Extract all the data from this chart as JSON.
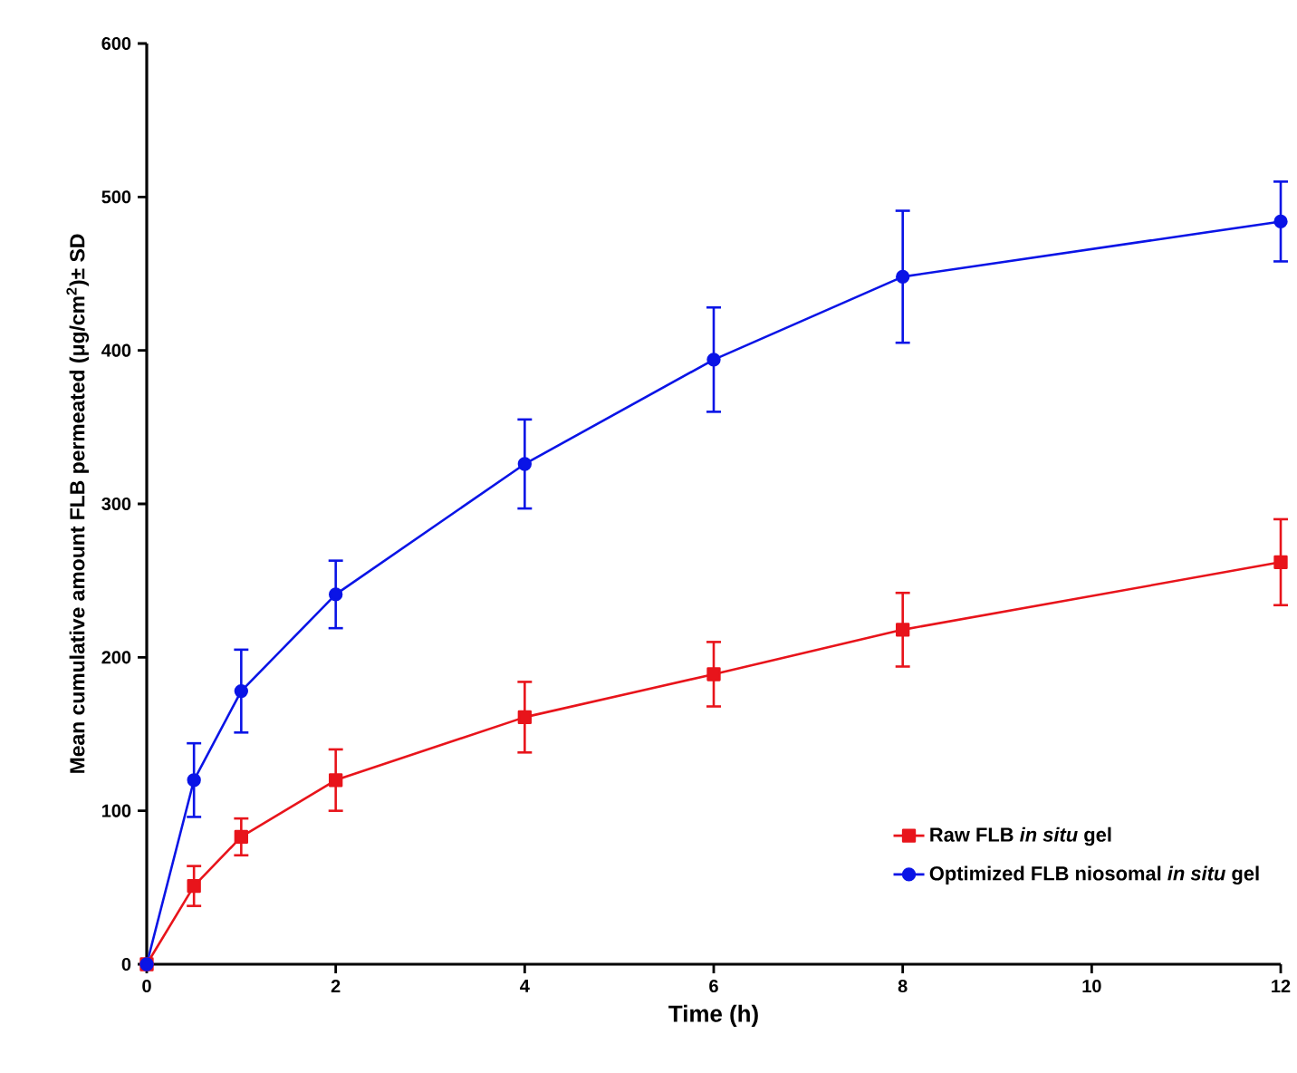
{
  "chart_data": {
    "type": "line",
    "xlabel": "Time (h)",
    "ylabel": "Mean cumulative amount FLB permeated (μg/cm$^{2}$)± SD",
    "x": [
      0,
      0.5,
      1,
      2,
      4,
      6,
      8,
      12
    ],
    "series": [
      {
        "name": "Raw FLB *in situ* gel",
        "color": "#e8141b",
        "marker": "square",
        "values": [
          0,
          51,
          83,
          120,
          161,
          189,
          218,
          262
        ],
        "errors": [
          0,
          13,
          12,
          20,
          23,
          21,
          24,
          28
        ]
      },
      {
        "name": "Optimized FLB niosomal *in situ* gel",
        "color": "#0a14e6",
        "marker": "circle",
        "values": [
          0,
          120,
          178,
          241,
          326,
          394,
          448,
          484
        ],
        "errors": [
          0,
          24,
          27,
          22,
          29,
          34,
          43,
          26
        ]
      }
    ],
    "xlim": [
      0,
      12
    ],
    "xticks": [
      0,
      2,
      4,
      6,
      8,
      10,
      12
    ],
    "ylim": [
      0,
      600
    ],
    "yticks": [
      0,
      100,
      200,
      300,
      400,
      500,
      600
    ],
    "legend": "bottom right",
    "line_style": "solid"
  }
}
